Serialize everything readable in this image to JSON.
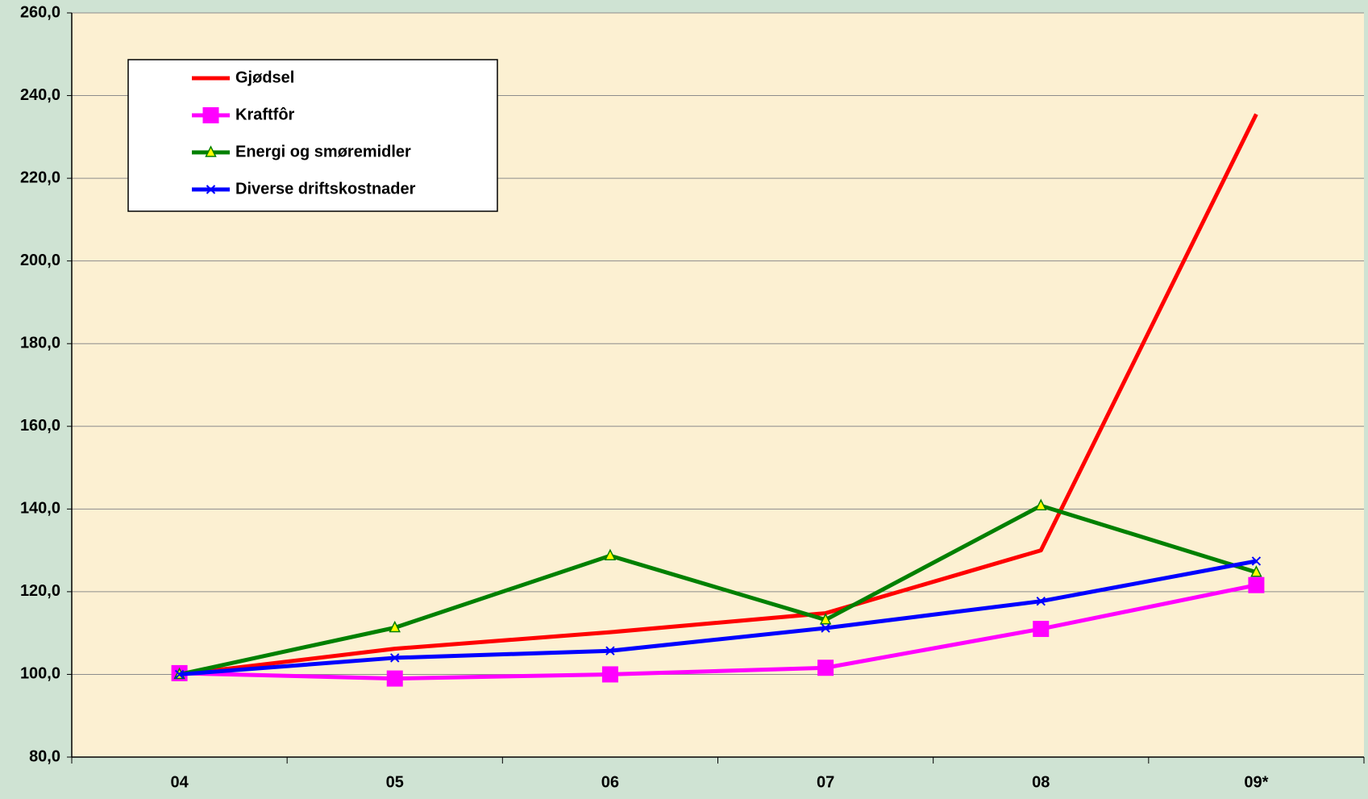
{
  "chart_data": {
    "type": "line",
    "categories": [
      "04",
      "05",
      "06",
      "07",
      "08",
      "09*"
    ],
    "series": [
      {
        "name": "Gjødsel",
        "color": "#ff0000",
        "marker": "none",
        "values": [
          100,
          106.2,
          110.2,
          114.8,
          130,
          235.5
        ]
      },
      {
        "name": "Kraftfôr",
        "color": "#ff00ff",
        "marker": "square",
        "values": [
          100.3,
          99,
          100,
          101.6,
          111,
          121.6
        ]
      },
      {
        "name": "Energi og smøremidler",
        "color": "#008000",
        "marker": "triangle",
        "values": [
          100,
          111.3,
          128.7,
          113.2,
          140.8,
          124.7
        ]
      },
      {
        "name": "Diverse driftskostnader",
        "color": "#0000ff",
        "marker": "x",
        "values": [
          100,
          104,
          105.7,
          111.2,
          117.7,
          127.4
        ]
      }
    ],
    "ylim": [
      80,
      260
    ],
    "yticks": [
      {
        "value": 80,
        "label": "80,0"
      },
      {
        "value": 100,
        "label": "100,0"
      },
      {
        "value": 120,
        "label": "120,0"
      },
      {
        "value": 140,
        "label": "140,0"
      },
      {
        "value": 160,
        "label": "160,0"
      },
      {
        "value": 180,
        "label": "180,0"
      },
      {
        "value": 200,
        "label": "200,0"
      },
      {
        "value": 220,
        "label": "220,0"
      },
      {
        "value": 240,
        "label": "240,0"
      },
      {
        "value": 260,
        "label": "260,0"
      }
    ],
    "grid": true,
    "legend": "upper left"
  }
}
